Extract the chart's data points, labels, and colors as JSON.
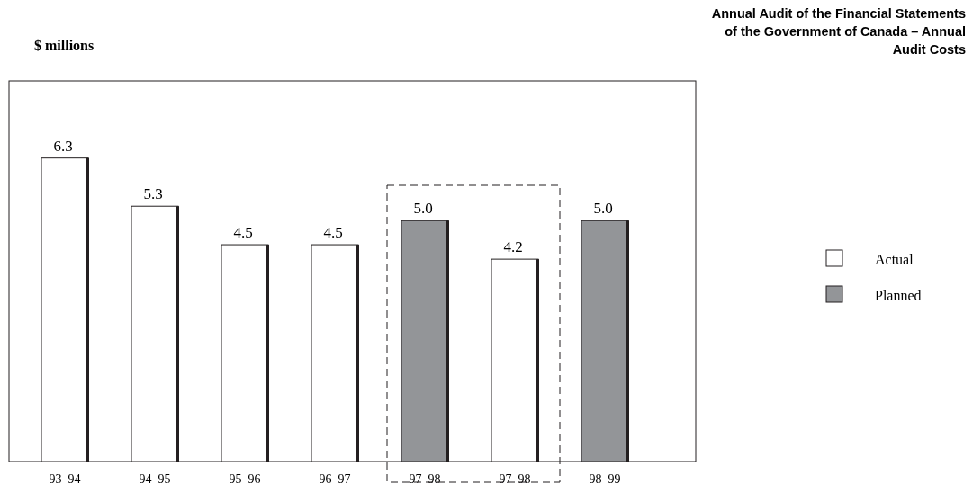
{
  "chart_data": {
    "type": "bar",
    "title": "Annual Audit of the Financial Statements of the Government of Canada – Annual Audit Costs",
    "ylabel": "$ millions",
    "categories": [
      "93–94",
      "94–95",
      "95–96",
      "96–97",
      "97–98",
      "97–98",
      "98–99"
    ],
    "series": [
      {
        "name": "Actual",
        "color": "#ffffff",
        "values": [
          6.3,
          5.3,
          4.5,
          4.5,
          null,
          4.2,
          null
        ],
        "value_labels": [
          "6.3",
          "5.3",
          "4.5",
          "4.5",
          null,
          "4.2",
          null
        ]
      },
      {
        "name": "Planned",
        "color": "#939598",
        "values": [
          null,
          null,
          null,
          null,
          5.0,
          null,
          5.0
        ],
        "value_labels": [
          null,
          null,
          null,
          null,
          "5.0",
          null,
          "5.0"
        ]
      }
    ],
    "ylim": [
      0,
      7.9
    ],
    "legend": "right"
  }
}
